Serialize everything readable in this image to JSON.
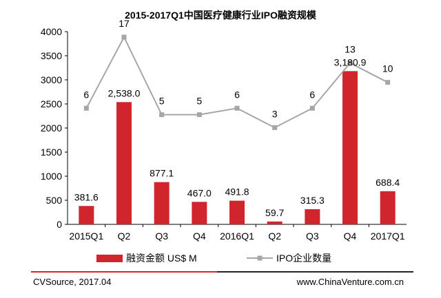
{
  "chart_data": {
    "type": "bar+line",
    "title": "2015-2017Q1中国医疗健康行业IPO融资规模",
    "categories": [
      "2015Q1",
      "Q2",
      "Q3",
      "Q4",
      "2016Q1",
      "Q2",
      "Q3",
      "Q4",
      "2017Q1"
    ],
    "series": [
      {
        "name": "融资金额 US$ M",
        "type": "bar",
        "color": "#d0252d",
        "values": [
          381.6,
          2538.0,
          877.1,
          467.0,
          491.8,
          59.7,
          315.3,
          3180.9,
          688.4
        ],
        "value_labels": [
          "381.6",
          "2,538.0",
          "877.1",
          "467.0",
          "491.8",
          "59.7",
          "315.3",
          "3,180.9",
          "688.4"
        ]
      },
      {
        "name": "IPO企业数量",
        "type": "line",
        "color": "#a6a6a6",
        "values": [
          6,
          17,
          5,
          5,
          6,
          3,
          6,
          13,
          10
        ]
      }
    ],
    "ylim": [
      0,
      4000
    ],
    "yticks": [
      0,
      500,
      1000,
      1500,
      2000,
      2500,
      3000,
      3500,
      4000
    ],
    "legend_position": "bottom"
  },
  "footer": {
    "source": "CVSource, 2017.04",
    "website": "www.ChinaVenture.com.cn",
    "accent_color": "#d0252d"
  }
}
